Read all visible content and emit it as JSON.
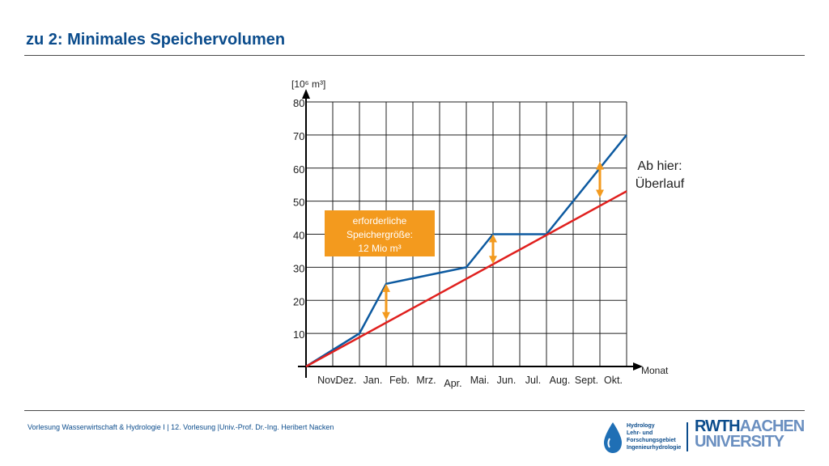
{
  "slide": {
    "title": "zu 2: Minimales Speichervolumen",
    "footer": "Vorlesung Wasserwirtschaft & Hydrologie I | 12. Vorlesung |Univ.-Prof. Dr.-Ing. Heribert Nacken"
  },
  "logos": {
    "hydrology_lines": [
      "Hydrology",
      "Lehr- und",
      "Forschungsgebiet",
      "Ingenieurhydrologie"
    ],
    "rwth_line1_dark": "RWTH",
    "rwth_line1_light": "AACHEN",
    "rwth_line2": "UNIVERSITY"
  },
  "chart_data": {
    "type": "line",
    "ylabel": "[10⁶ m³]",
    "xlabel": "Monat",
    "ylim": [
      0,
      80
    ],
    "yticks": [
      10,
      20,
      30,
      40,
      50,
      60,
      70,
      80
    ],
    "grid": true,
    "categories": [
      "Nov.",
      "Dez.",
      "Jan.",
      "Feb.",
      "Mrz.",
      "Apr.",
      "Mai.",
      "Jun.",
      "Jul.",
      "Aug.",
      "Sept.",
      "Okt."
    ],
    "series": [
      {
        "color": "#0d5aa0",
        "x": [
          0,
          2,
          3,
          6,
          7,
          9,
          12
        ],
        "y": [
          0,
          10,
          25,
          30,
          40,
          40,
          70
        ]
      },
      {
        "color": "#e0201e",
        "x": [
          0,
          12
        ],
        "y": [
          0,
          53
        ]
      }
    ],
    "arrows": [
      {
        "x": 3,
        "from": 14,
        "to": 25,
        "color": "#f39a1e"
      },
      {
        "x": 7,
        "from": 31,
        "to": 40,
        "color": "#f39a1e"
      },
      {
        "x": 11,
        "from": 51,
        "to": 62,
        "color": "#f39a1e"
      }
    ],
    "annotations": {
      "storage_box": {
        "lines": [
          "erforderliche",
          "Speichergröße:",
          "12 Mio m³"
        ],
        "color": "#f39a1e"
      },
      "overflow": {
        "lines": [
          "Ab hier:",
          "Überlauf"
        ]
      }
    }
  }
}
